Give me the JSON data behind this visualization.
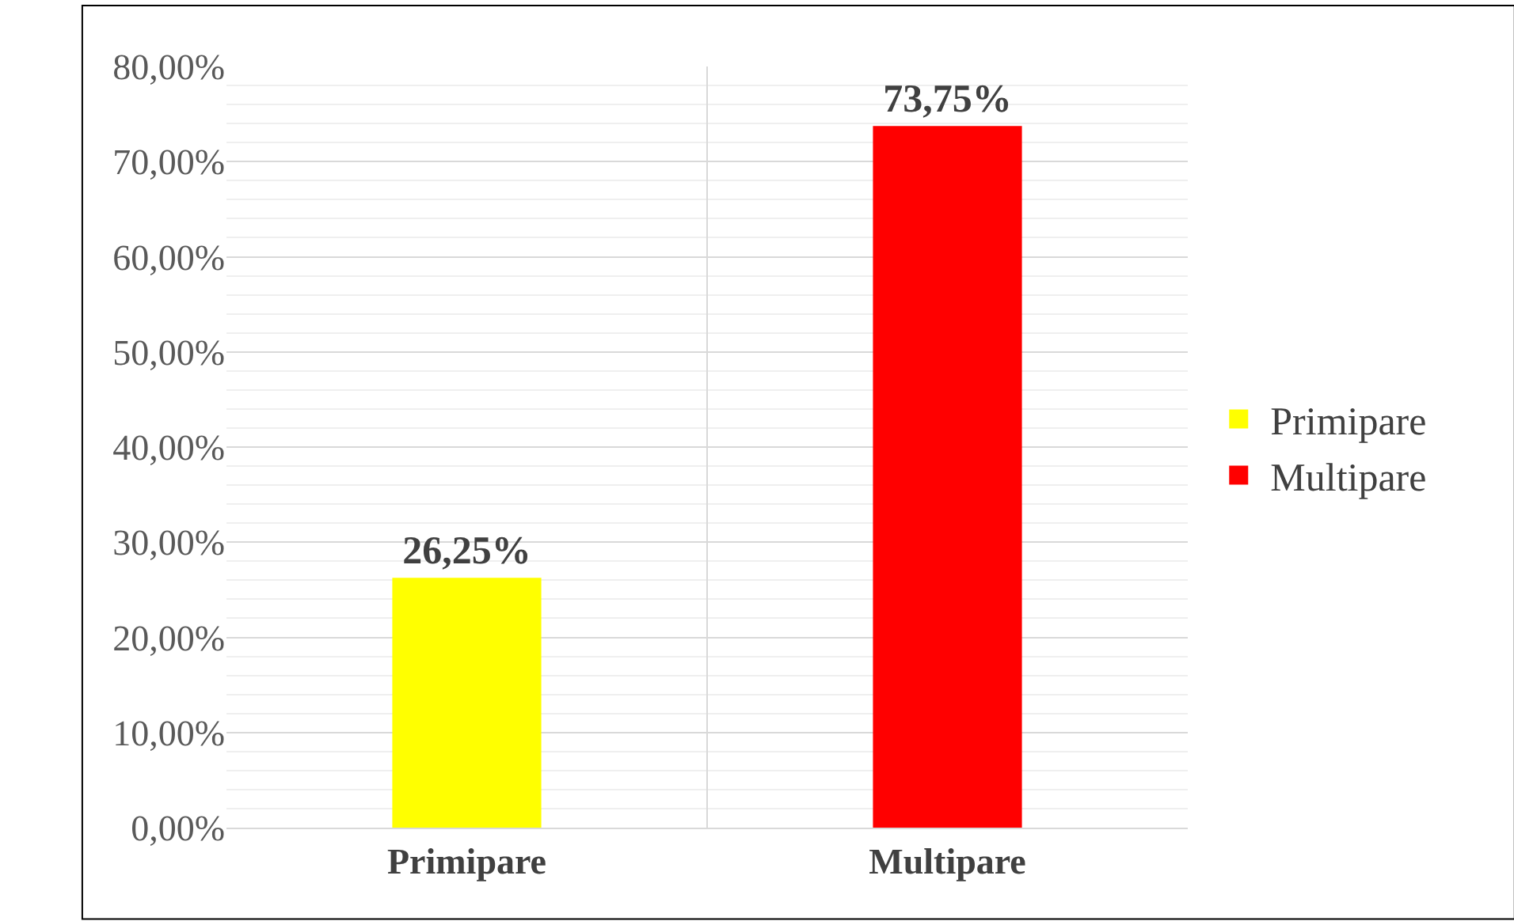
{
  "chart_data": {
    "type": "bar",
    "categories": [
      "Primipare",
      "Multipare"
    ],
    "series": [
      {
        "name": "Primipare",
        "color": "#ffff00",
        "values": [
          26.25,
          null
        ],
        "value_labels": [
          "26,25%",
          null
        ]
      },
      {
        "name": "Multipare",
        "color": "#ff0000",
        "values": [
          null,
          73.75
        ],
        "value_labels": [
          null,
          "73,75%"
        ]
      }
    ],
    "ylim": [
      0,
      80
    ],
    "yticks": [
      {
        "value": 0,
        "label": "0,00%"
      },
      {
        "value": 2,
        "label": null
      },
      {
        "value": 4,
        "label": null
      },
      {
        "value": 6,
        "label": null
      },
      {
        "value": 8,
        "label": null
      },
      {
        "value": 10,
        "label": "10,00%"
      },
      {
        "value": 12,
        "label": null
      },
      {
        "value": 14,
        "label": null
      },
      {
        "value": 16,
        "label": null
      },
      {
        "value": 18,
        "label": null
      },
      {
        "value": 20,
        "label": "20,00%"
      },
      {
        "value": 22,
        "label": null
      },
      {
        "value": 24,
        "label": null
      },
      {
        "value": 26,
        "label": null
      },
      {
        "value": 28,
        "label": null
      },
      {
        "value": 30,
        "label": "30,00%"
      },
      {
        "value": 32,
        "label": null
      },
      {
        "value": 34,
        "label": null
      },
      {
        "value": 36,
        "label": null
      },
      {
        "value": 38,
        "label": null
      },
      {
        "value": 40,
        "label": "40,00%"
      },
      {
        "value": 42,
        "label": null
      },
      {
        "value": 44,
        "label": null
      },
      {
        "value": 46,
        "label": null
      },
      {
        "value": 48,
        "label": null
      },
      {
        "value": 50,
        "label": "50,00%"
      },
      {
        "value": 52,
        "label": null
      },
      {
        "value": 54,
        "label": null
      },
      {
        "value": 56,
        "label": null
      },
      {
        "value": 58,
        "label": null
      },
      {
        "value": 60,
        "label": "60,00%"
      },
      {
        "value": 62,
        "label": null
      },
      {
        "value": 64,
        "label": null
      },
      {
        "value": 66,
        "label": null
      },
      {
        "value": 68,
        "label": null
      },
      {
        "value": 70,
        "label": "70,00%"
      },
      {
        "value": 72,
        "label": null
      },
      {
        "value": 74,
        "label": null
      },
      {
        "value": 76,
        "label": null
      },
      {
        "value": 78,
        "label": null
      },
      {
        "value": 80,
        "label": "80,00%"
      }
    ],
    "grid": true,
    "legend": "right"
  }
}
